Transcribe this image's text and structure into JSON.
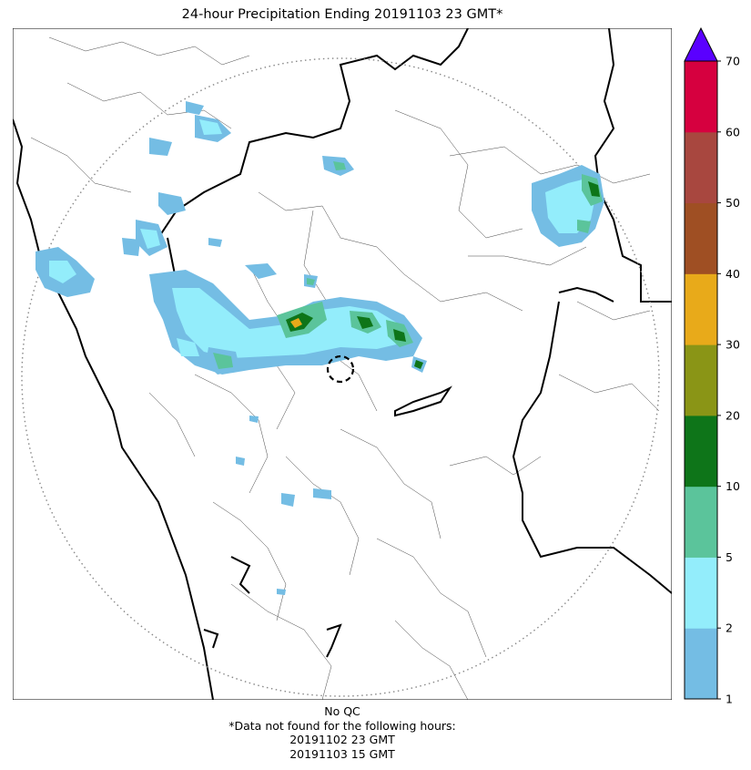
{
  "title": "24-hour Precipitation Ending 20191103 23 GMT*",
  "footer": {
    "qc": "No QC",
    "missing_note": "*Data not found for the following hours:",
    "missing_hours": [
      "20191102 23 GMT",
      "20191103 15 GMT"
    ]
  },
  "colorbar": {
    "levels": [
      "1",
      "2",
      "5",
      "10",
      "20",
      "30",
      "40",
      "50",
      "60",
      "70"
    ],
    "colors": [
      "#74bde4",
      "#93edfb",
      "#5bc49b",
      "#0e7519",
      "#8a9516",
      "#e8aa1a",
      "#9f4f23",
      "#a8473f",
      "#d6003f"
    ],
    "extend_color": "#5a00ff"
  },
  "map": {
    "range_ring": "dotted",
    "radar_marker": "dashed-circle",
    "boundaries": [
      "coastline",
      "state-borders",
      "district-borders"
    ]
  }
}
